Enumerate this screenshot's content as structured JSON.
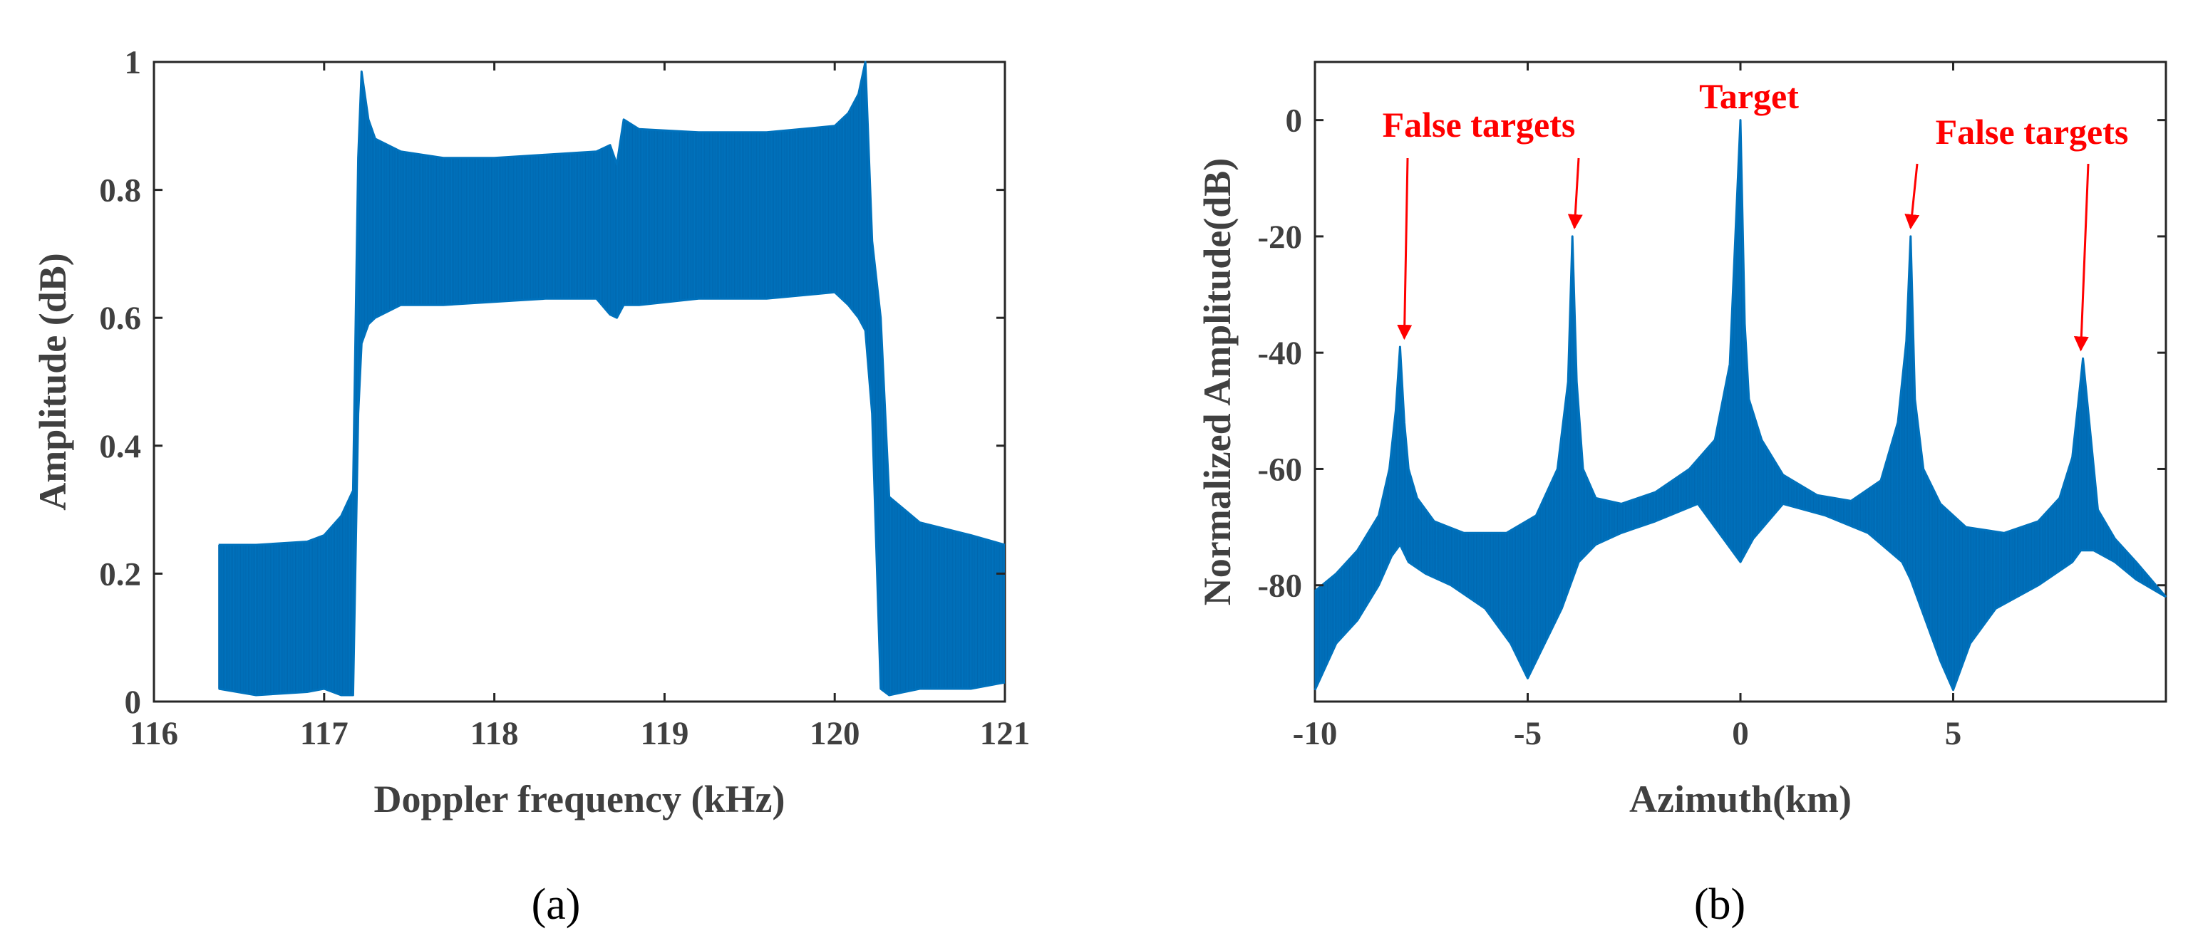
{
  "figure_labels": {
    "a": "(a)",
    "b": "(b)"
  },
  "chart_data": [
    {
      "type": "line",
      "panel": "(a)",
      "title": "",
      "xlabel": "Doppler frequency (kHz)",
      "ylabel": "Amplitude (dB)",
      "xlim": [
        116,
        121
      ],
      "ylim": [
        0,
        1
      ],
      "xticks": [
        "116",
        "117",
        "118",
        "119",
        "120",
        "121"
      ],
      "yticks": [
        "0",
        "0.2",
        "0.4",
        "0.6",
        "0.8",
        "1"
      ],
      "color": "#0072bd",
      "series": [
        {
          "name": "spectrum upper envelope",
          "x": [
            116.38,
            116.6,
            116.9,
            117.0,
            117.1,
            117.17,
            117.2,
            117.22,
            117.26,
            117.3,
            117.45,
            117.7,
            118.0,
            118.3,
            118.6,
            118.68,
            118.72,
            118.76,
            118.85,
            119.2,
            119.6,
            120.0,
            120.08,
            120.14,
            120.18,
            120.22,
            120.27,
            120.32,
            120.5,
            120.8,
            121.0
          ],
          "values": [
            0.245,
            0.245,
            0.25,
            0.26,
            0.29,
            0.33,
            0.85,
            0.985,
            0.91,
            0.88,
            0.86,
            0.85,
            0.85,
            0.855,
            0.86,
            0.87,
            0.84,
            0.91,
            0.895,
            0.89,
            0.89,
            0.9,
            0.92,
            0.95,
            1.0,
            0.72,
            0.6,
            0.32,
            0.28,
            0.26,
            0.245
          ]
        },
        {
          "name": "spectrum lower envelope",
          "x": [
            116.38,
            116.6,
            116.9,
            117.0,
            117.1,
            117.17,
            117.2,
            117.22,
            117.26,
            117.3,
            117.45,
            117.7,
            118.0,
            118.3,
            118.6,
            118.68,
            118.72,
            118.76,
            118.85,
            119.2,
            119.6,
            120.0,
            120.08,
            120.14,
            120.18,
            120.22,
            120.27,
            120.32,
            120.5,
            120.8,
            121.0
          ],
          "values": [
            0.02,
            0.01,
            0.015,
            0.02,
            0.01,
            0.01,
            0.45,
            0.56,
            0.59,
            0.6,
            0.62,
            0.62,
            0.625,
            0.63,
            0.63,
            0.605,
            0.6,
            0.62,
            0.62,
            0.63,
            0.63,
            0.64,
            0.62,
            0.6,
            0.58,
            0.45,
            0.02,
            0.01,
            0.02,
            0.02,
            0.03
          ]
        }
      ]
    },
    {
      "type": "line",
      "panel": "(b)",
      "title": "",
      "xlabel": "Azimuth(km)",
      "ylabel": "Normalized Amplitude(dB)",
      "xlim": [
        -10,
        10
      ],
      "ylim": [
        -100,
        10
      ],
      "xticks": [
        "-10",
        "-5",
        "0",
        "5"
      ],
      "yticks": [
        "0",
        "-20",
        "-40",
        "-60",
        "-80"
      ],
      "color": "#0072bd",
      "series": [
        {
          "name": "azimuth profile upper envelope",
          "x": [
            -10,
            -9.5,
            -9,
            -8.5,
            -8.25,
            -8.1,
            -8.0,
            -7.9,
            -7.8,
            -7.6,
            -7.2,
            -6.5,
            -5.5,
            -4.8,
            -4.3,
            -4.05,
            -3.95,
            -3.85,
            -3.7,
            -3.4,
            -2.8,
            -2.0,
            -1.2,
            -0.6,
            -0.25,
            0.0,
            0.1,
            0.2,
            0.5,
            1.0,
            1.8,
            2.6,
            3.3,
            3.7,
            3.9,
            4.0,
            4.1,
            4.3,
            4.7,
            5.3,
            6.2,
            7.0,
            7.5,
            7.8,
            7.95,
            8.05,
            8.2,
            8.4,
            8.8,
            9.3,
            10
          ],
          "values": [
            -81,
            -78,
            -74,
            -68,
            -60,
            -50,
            -39,
            -52,
            -60,
            -65,
            -69,
            -71,
            -71,
            -68,
            -60,
            -45,
            -20,
            -45,
            -60,
            -65,
            -66,
            -64,
            -60,
            -55,
            -42,
            0,
            -35,
            -48,
            -55,
            -61,
            -64.5,
            -65.5,
            -62,
            -52,
            -38,
            -20,
            -48,
            -60,
            -66,
            -70,
            -71,
            -69,
            -65,
            -58,
            -48,
            -41,
            -52,
            -67,
            -72,
            -76,
            -82
          ]
        },
        {
          "name": "azimuth profile lower envelope",
          "x": [
            -10,
            -9.5,
            -9,
            -8.5,
            -8.2,
            -8.0,
            -7.8,
            -7.4,
            -6.8,
            -6.0,
            -5.4,
            -5.0,
            -4.6,
            -4.2,
            -4.0,
            -3.8,
            -3.4,
            -2.8,
            -2.0,
            -1.0,
            -0.3,
            0.0,
            0.3,
            1.0,
            2.0,
            3.0,
            3.8,
            4.0,
            4.3,
            4.7,
            5.0,
            5.4,
            6.0,
            7.0,
            7.8,
            8.0,
            8.3,
            8.8,
            9.3,
            10
          ],
          "values": [
            -98,
            -90,
            -86,
            -80,
            -75,
            -73,
            -76,
            -78,
            -80,
            -84,
            -90,
            -96,
            -90,
            -84,
            -80,
            -76,
            -73,
            -71,
            -69,
            -66,
            -73,
            -76,
            -72,
            -66,
            -68,
            -71,
            -76,
            -79,
            -85,
            -93,
            -98,
            -90,
            -84,
            -80,
            -76,
            -74,
            -74,
            -76,
            -79,
            -82
          ]
        }
      ],
      "annotations": [
        {
          "text": "False targets",
          "points_to": [
            [
              -7.9,
              -39
            ]
          ]
        },
        {
          "text": "False targets",
          "points_to": [
            [
              -3.9,
              -20
            ]
          ]
        },
        {
          "text": "Target",
          "points_to": [
            [
              0,
              0
            ]
          ]
        },
        {
          "text": "False targets",
          "points_to": [
            [
              4.0,
              -20
            ]
          ]
        },
        {
          "text": "False targets",
          "points_to": [
            [
              8.0,
              -41
            ]
          ]
        }
      ]
    }
  ]
}
